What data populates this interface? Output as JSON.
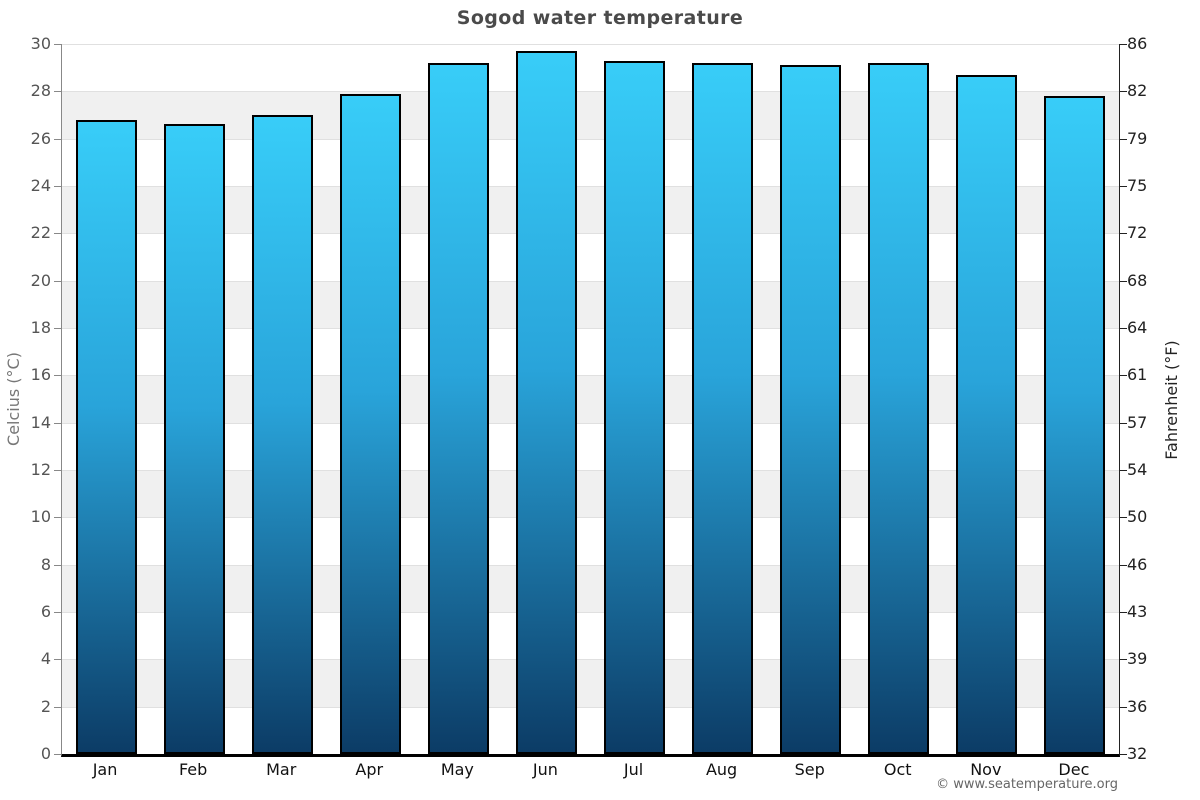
{
  "title": "Sogod water temperature",
  "watermark": "© www.seatemperature.org",
  "chart_data": {
    "type": "bar",
    "title": "Sogod water temperature",
    "categories": [
      "Jan",
      "Feb",
      "Mar",
      "Apr",
      "May",
      "Jun",
      "Jul",
      "Aug",
      "Sep",
      "Oct",
      "Nov",
      "Dec"
    ],
    "values": [
      26.8,
      26.6,
      27.0,
      27.9,
      29.2,
      29.7,
      29.3,
      29.2,
      29.1,
      29.2,
      28.7,
      27.8
    ],
    "ylabel_left": "Celcius (°C)",
    "ylabel_right": "Fahrenheit (°F)",
    "ylim_c": [
      0,
      30
    ],
    "yticks_c": [
      0,
      2,
      4,
      6,
      8,
      10,
      12,
      14,
      16,
      18,
      20,
      22,
      24,
      26,
      28,
      30
    ],
    "yticks_f": [
      32,
      36,
      39,
      43,
      46,
      50,
      54,
      57,
      61,
      64,
      68,
      72,
      75,
      79,
      82,
      86
    ],
    "xlabel": "",
    "grid": true,
    "legend": "none",
    "band_color": "#f0f0f0",
    "grid_color": "#e0e0e0",
    "bar_border_color": "#000000",
    "bar_gradient_top": "#38CDF8",
    "bar_gradient_mid": "#29A4DA",
    "bar_gradient_bottom": "#0C3C66"
  }
}
